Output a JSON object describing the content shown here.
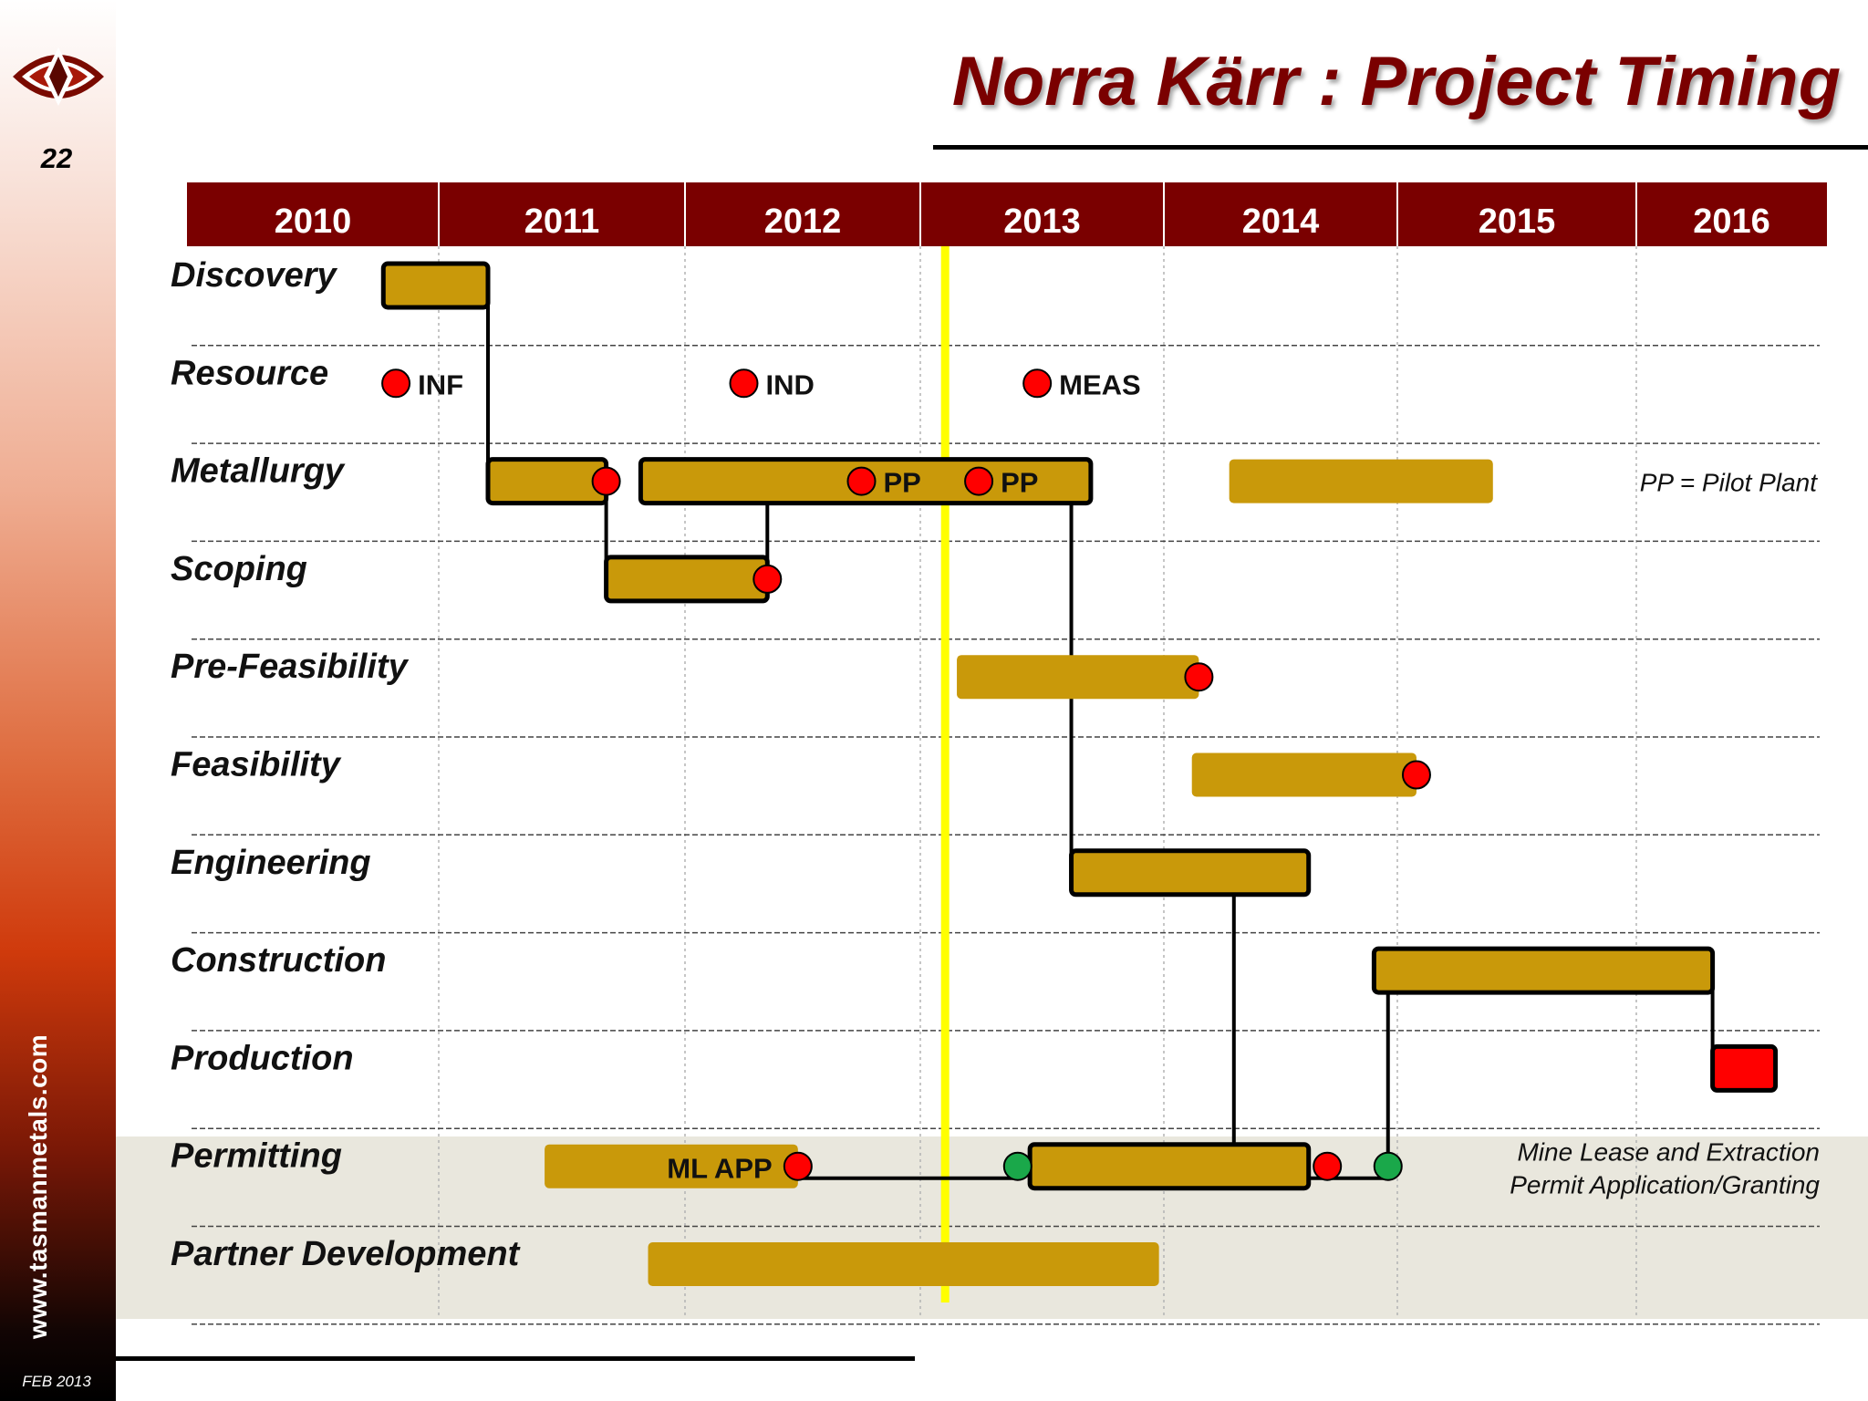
{
  "slide": {
    "title": "Norra Kärr : Project Timing",
    "page_number": "22",
    "website": "www.tasmanmetals.com",
    "footer_date": "FEB 2013",
    "logo_icon": "eye-diamond-logo-icon",
    "colors": {
      "header": "#7a0000",
      "bar": "#c9990a",
      "milestone": "#ff0000",
      "approval": "#1aa84a",
      "today_line": "#ffff00",
      "production": "#ff0000"
    }
  },
  "chart_data": {
    "type": "gantt",
    "title": "Norra Kärr : Project Timing",
    "years": [
      "2010",
      "2011",
      "2012",
      "2013",
      "2014",
      "2015",
      "2016"
    ],
    "x_range": [
      2010.0,
      2016.8
    ],
    "today_marker": 2013.1,
    "grid": "dashed horizontal and dotted vertical",
    "rows": [
      "Discovery",
      "Resource",
      "Metallurgy",
      "Scoping",
      "Pre-Feasibility",
      "Feasibility",
      "Engineering",
      "Construction",
      "Production",
      "Permitting",
      "Partner Development"
    ],
    "bars": [
      {
        "row": 0,
        "start": 2010.78,
        "end": 2011.2,
        "outlined": true
      },
      {
        "row": 2,
        "start": 2011.2,
        "end": 2011.68,
        "outlined": true
      },
      {
        "row": 2,
        "start": 2011.82,
        "end": 2013.7,
        "outlined": true
      },
      {
        "row": 2,
        "start": 2014.28,
        "end": 2015.4,
        "outlined": false
      },
      {
        "row": 3,
        "start": 2011.68,
        "end": 2012.35,
        "outlined": true
      },
      {
        "row": 4,
        "start": 2013.15,
        "end": 2014.15,
        "outlined": false
      },
      {
        "row": 5,
        "start": 2014.12,
        "end": 2015.08,
        "outlined": false
      },
      {
        "row": 6,
        "start": 2013.62,
        "end": 2014.62,
        "outlined": true
      },
      {
        "row": 7,
        "start": 2014.9,
        "end": 2016.4,
        "outlined": true
      },
      {
        "row": 8,
        "start": 2016.4,
        "end": 2016.73,
        "outlined": true,
        "red": true
      },
      {
        "row": 9,
        "start": 2011.43,
        "end": 2012.48,
        "outlined": false,
        "label": "ML APP"
      },
      {
        "row": 9,
        "start": 2013.45,
        "end": 2014.62,
        "outlined": true
      },
      {
        "row": 10,
        "start": 2011.85,
        "end": 2013.98,
        "outlined": false
      }
    ],
    "milestones": [
      {
        "row": 1,
        "x": 2010.83,
        "color": "red",
        "label": "INF"
      },
      {
        "row": 1,
        "x": 2012.25,
        "color": "red",
        "label": "IND"
      },
      {
        "row": 1,
        "x": 2013.48,
        "color": "red",
        "label": "MEAS"
      },
      {
        "row": 2,
        "x": 2011.68,
        "color": "red"
      },
      {
        "row": 2,
        "x": 2012.75,
        "color": "red",
        "label": "PP"
      },
      {
        "row": 2,
        "x": 2013.24,
        "color": "red",
        "label": "PP"
      },
      {
        "row": 3,
        "x": 2012.35,
        "color": "red"
      },
      {
        "row": 4,
        "x": 2014.15,
        "color": "red"
      },
      {
        "row": 5,
        "x": 2015.08,
        "color": "red"
      },
      {
        "row": 9,
        "x": 2012.48,
        "color": "red"
      },
      {
        "row": 9,
        "x": 2013.4,
        "color": "green"
      },
      {
        "row": 9,
        "x": 2014.7,
        "color": "red"
      },
      {
        "row": 9,
        "x": 2014.96,
        "color": "green"
      }
    ],
    "annotations": [
      {
        "row": 2,
        "text": "PP = Pilot Plant"
      },
      {
        "row": 9,
        "lines": [
          "Mine Lease and Extraction",
          "Permit Application/Granting"
        ]
      }
    ]
  }
}
